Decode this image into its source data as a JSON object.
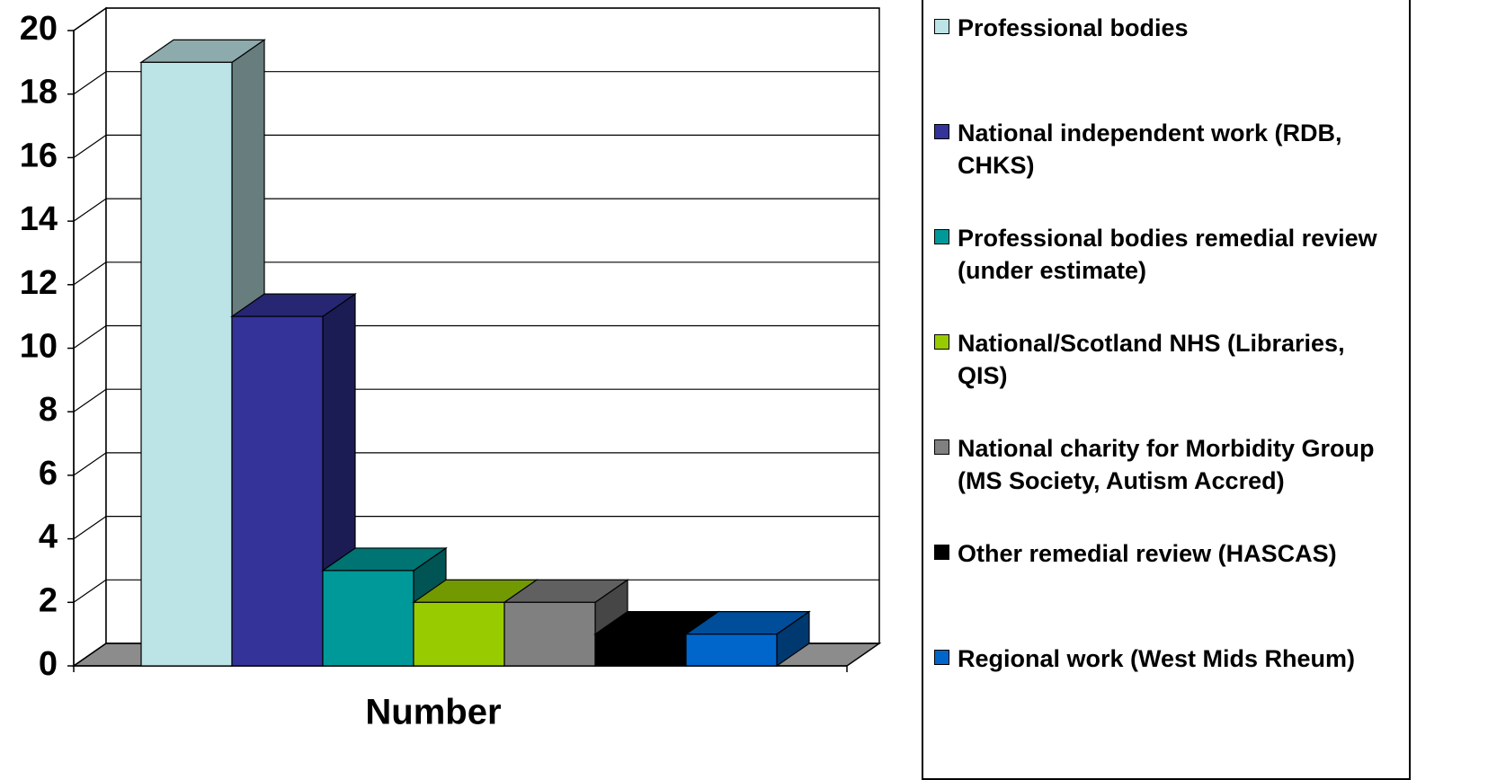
{
  "chart_data": {
    "type": "bar",
    "categories": [
      "Number"
    ],
    "series": [
      {
        "name": "Professional bodies",
        "color": "#bce3e5",
        "values": [
          19
        ]
      },
      {
        "name": "National independent work (RDB, CHKS)",
        "color": "#333399",
        "values": [
          11
        ]
      },
      {
        "name": "Professional bodies remedial review (under estimate)",
        "color": "#009999",
        "values": [
          3
        ]
      },
      {
        "name": "National/Scotland NHS (Libraries, QIS)",
        "color": "#99cc00",
        "values": [
          2
        ]
      },
      {
        "name": "National charity for Morbidity Group (MS Society, Autism Accred)",
        "color": "#808080",
        "values": [
          2
        ]
      },
      {
        "name": "Other remedial review (HASCAS)",
        "color": "#000000",
        "values": [
          1
        ]
      },
      {
        "name": "Regional work (West Mids Rheum)",
        "color": "#0066cc",
        "values": [
          1
        ]
      }
    ],
    "ylim": [
      0,
      20
    ],
    "yticks": [
      0,
      2,
      4,
      6,
      8,
      10,
      12,
      14,
      16,
      18,
      20
    ],
    "grid": true
  }
}
